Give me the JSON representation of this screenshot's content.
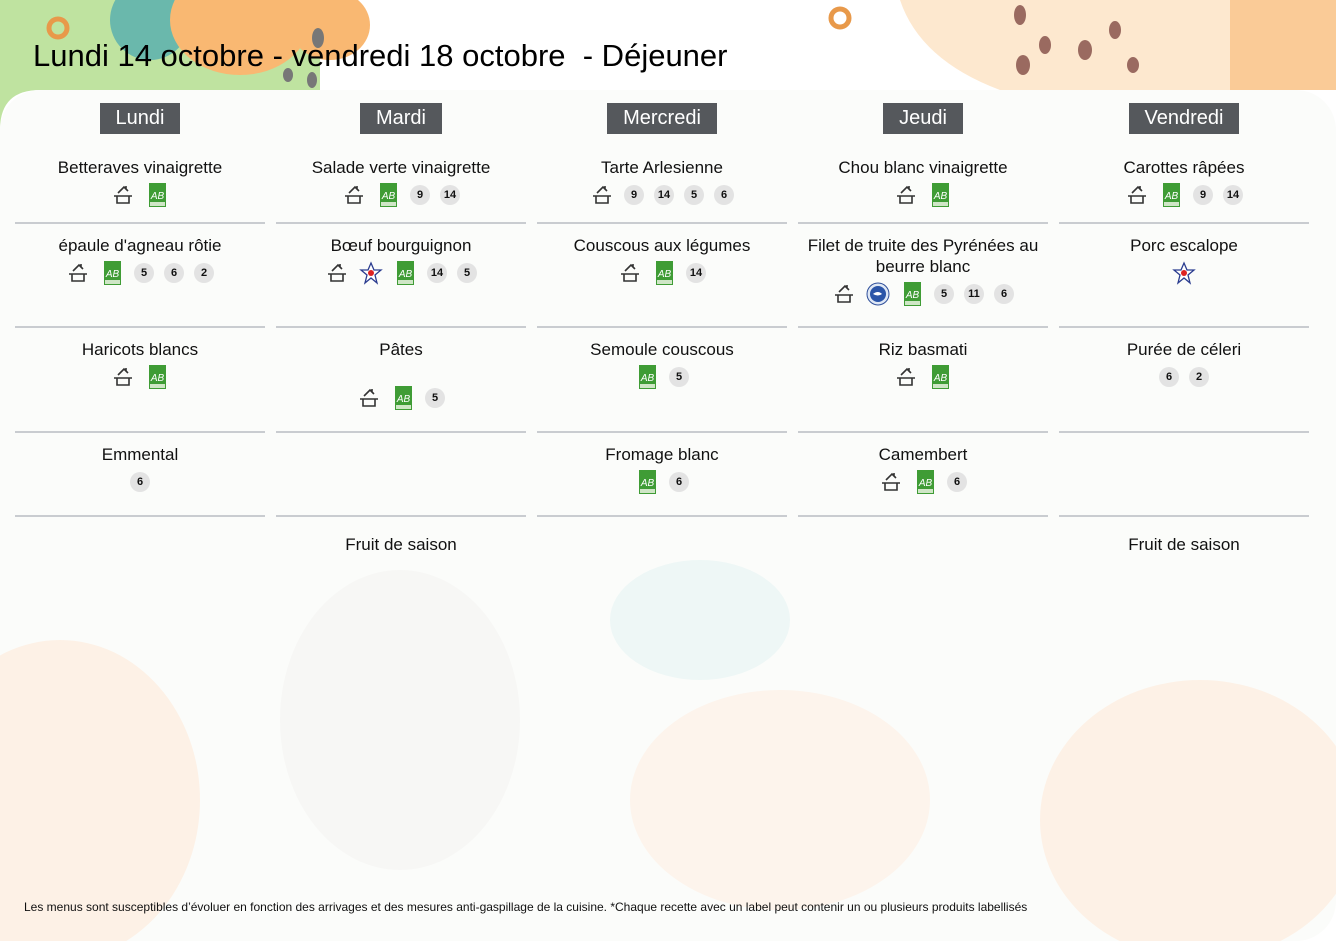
{
  "header": {
    "title": "Lundi 14 octobre - vendredi 18 octobre  - Déjeuner"
  },
  "colors": {
    "day_header_bg": "#55585c",
    "bio_green": "#3f9c35",
    "divider": "#c9ccd0"
  },
  "days": [
    {
      "name": "Lundi",
      "items": [
        {
          "name": "Betteraves vinaigrette",
          "labels": [
            "homemade",
            "bio"
          ],
          "allergens": []
        },
        {
          "name": "épaule d'agneau rôtie",
          "labels": [
            "homemade",
            "bio"
          ],
          "allergens": [
            "5",
            "6",
            "2"
          ]
        },
        {
          "name": "Haricots blancs",
          "labels": [
            "homemade",
            "bio"
          ],
          "allergens": []
        },
        {
          "name": "Emmental",
          "labels": [],
          "allergens": [
            "6"
          ]
        },
        {
          "name": "",
          "labels": [],
          "allergens": []
        }
      ]
    },
    {
      "name": "Mardi",
      "items": [
        {
          "name": "Salade verte vinaigrette",
          "labels": [
            "homemade",
            "bio"
          ],
          "allergens": [
            "9",
            "14"
          ]
        },
        {
          "name": "Bœuf bourguignon",
          "labels": [
            "homemade",
            "french-meat",
            "bio"
          ],
          "allergens": [
            "14",
            "5"
          ]
        },
        {
          "name": "Pâtes",
          "labels": [
            "homemade",
            "bio"
          ],
          "allergens": [
            "5"
          ]
        },
        {
          "name": "",
          "labels": [],
          "allergens": []
        },
        {
          "name": "Fruit de saison",
          "labels": [],
          "allergens": []
        }
      ]
    },
    {
      "name": "Mercredi",
      "items": [
        {
          "name": "Tarte Arlesienne",
          "labels": [
            "homemade"
          ],
          "allergens": [
            "9",
            "14",
            "5",
            "6"
          ]
        },
        {
          "name": "Couscous aux légumes",
          "labels": [
            "homemade",
            "bio"
          ],
          "allergens": [
            "14"
          ]
        },
        {
          "name": "Semoule couscous",
          "labels": [
            "bio"
          ],
          "allergens": [
            "5"
          ]
        },
        {
          "name": "Fromage blanc",
          "labels": [
            "bio"
          ],
          "allergens": [
            "6"
          ]
        },
        {
          "name": "",
          "labels": [],
          "allergens": []
        }
      ]
    },
    {
      "name": "Jeudi",
      "items": [
        {
          "name": "Chou blanc vinaigrette",
          "labels": [
            "homemade",
            "bio"
          ],
          "allergens": []
        },
        {
          "name": "Filet de truite des Pyrénées au beurre blanc",
          "labels": [
            "homemade",
            "fish-label",
            "bio"
          ],
          "allergens": [
            "5",
            "11",
            "6"
          ]
        },
        {
          "name": "Riz basmati",
          "labels": [
            "homemade",
            "bio"
          ],
          "allergens": []
        },
        {
          "name": "Camembert",
          "labels": [
            "homemade",
            "bio"
          ],
          "allergens": [
            "6"
          ]
        },
        {
          "name": "",
          "labels": [],
          "allergens": []
        }
      ]
    },
    {
      "name": "Vendredi",
      "items": [
        {
          "name": "Carottes râpées",
          "labels": [
            "homemade",
            "bio"
          ],
          "allergens": [
            "9",
            "14"
          ]
        },
        {
          "name": "Porc escalope",
          "labels": [
            "french-meat"
          ],
          "allergens": []
        },
        {
          "name": "Purée de céleri",
          "labels": [],
          "allergens": [
            "6",
            "2"
          ]
        },
        {
          "name": "",
          "labels": [],
          "allergens": []
        },
        {
          "name": "Fruit de saison",
          "labels": [],
          "allergens": []
        }
      ]
    }
  ],
  "logo_text": {
    "bio": "AB"
  },
  "footer": {
    "note": "Les menus sont susceptibles d’évoluer en fonction des arrivages et des mesures anti-gaspillage de la cuisine. *Chaque recette avec un label peut contenir un ou plusieurs produits labellisés"
  }
}
